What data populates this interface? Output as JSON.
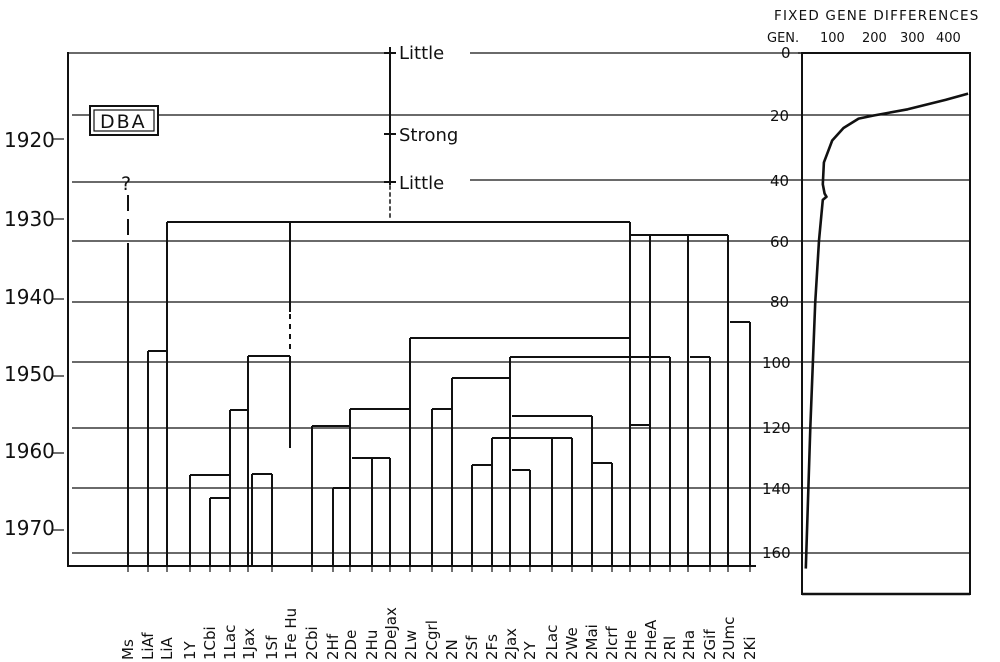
{
  "header": {
    "title": "FIXED GENE DIFFERENCES",
    "gen_label": "GEN.",
    "top_scale": [
      "100",
      "200",
      "300",
      "400"
    ],
    "zero_label": "0"
  },
  "dba_box": {
    "label": "DBA"
  },
  "selection_eras": [
    "Little",
    "Strong",
    "Little"
  ],
  "question_mark": "?",
  "year_axis": [
    "1920",
    "1930",
    "1940",
    "1950",
    "1960",
    "1970"
  ],
  "generation_axis": [
    "20",
    "40",
    "60",
    "80",
    "100",
    "120",
    "140",
    "160"
  ],
  "strains": [
    "Ms",
    "LiAf",
    "LiA",
    "1Y",
    "1Cbi",
    "1Lac",
    "1Jax",
    "1Sf",
    "1Fe Hu",
    "2Cbi",
    "2Hf",
    "2De",
    "2Hu",
    "2DeJax",
    "2Lw",
    "2Cgrl",
    "2N",
    "2Sf",
    "2Fs",
    "2Jax",
    "2Y",
    "2Lac",
    "2We",
    "2Mai",
    "2Icrf",
    "2He",
    "2HeA",
    "2Rl",
    "2Ha",
    "2Gif",
    "2Umc",
    "2Ki"
  ],
  "chart_data": {
    "type": "line",
    "title": "FIXED GENE DIFFERENCES",
    "x_axis_label": "FIXED GENE DIFFERENCES",
    "y_axis_label": "GEN.",
    "x_ticks": [
      0,
      100,
      200,
      300,
      400
    ],
    "y_ticks": [
      0,
      20,
      40,
      60,
      80,
      100,
      120,
      140,
      160
    ],
    "series": [
      {
        "points": [
          {
            "gen": 165,
            "fixed": 10
          },
          {
            "gen": 120,
            "fixed": 22
          },
          {
            "gen": 80,
            "fixed": 35
          },
          {
            "gen": 60,
            "fixed": 45
          },
          {
            "gen": 47,
            "fixed": 55
          },
          {
            "gen": 46,
            "fixed": 65
          },
          {
            "gen": 45,
            "fixed": 60
          },
          {
            "gen": 42,
            "fixed": 55
          },
          {
            "gen": 35,
            "fixed": 58
          },
          {
            "gen": 28,
            "fixed": 80
          },
          {
            "gen": 24,
            "fixed": 110
          },
          {
            "gen": 21,
            "fixed": 150
          },
          {
            "gen": 20,
            "fixed": 190
          },
          {
            "gen": 18,
            "fixed": 280
          },
          {
            "gen": 15,
            "fixed": 380
          },
          {
            "gen": 13,
            "fixed": 440
          }
        ]
      }
    ]
  }
}
